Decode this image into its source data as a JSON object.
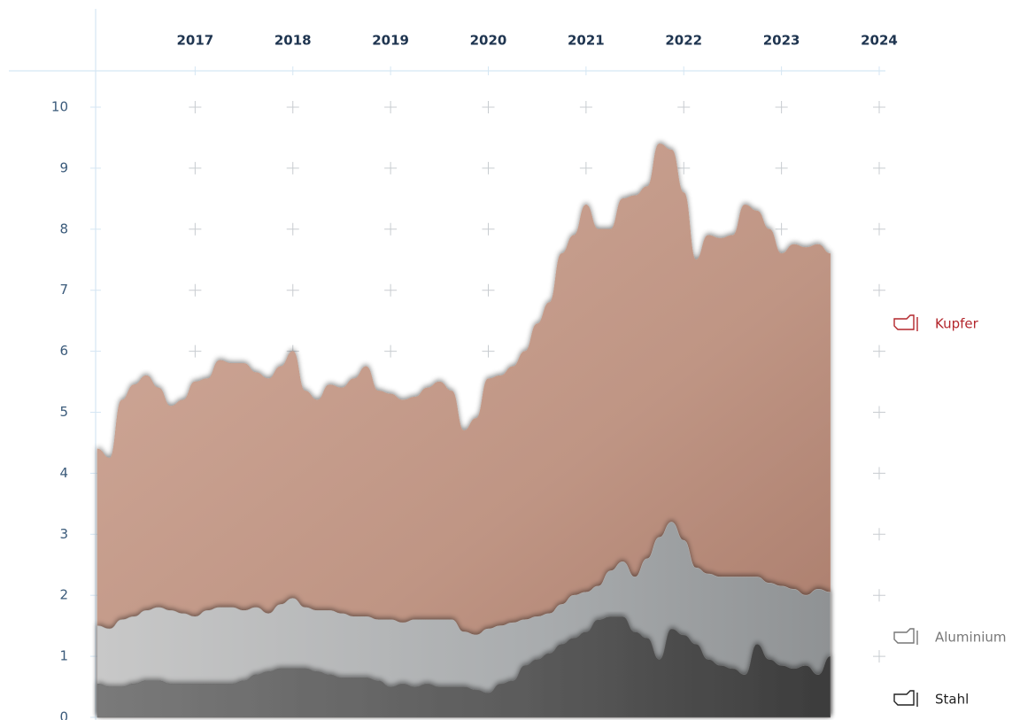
{
  "chart_data": {
    "type": "area",
    "x": [
      2016,
      2016.125,
      2016.25,
      2016.375,
      2016.5,
      2016.625,
      2016.75,
      2016.875,
      2017,
      2017.125,
      2017.25,
      2017.375,
      2017.5,
      2017.625,
      2017.75,
      2017.875,
      2018,
      2018.125,
      2018.25,
      2018.375,
      2018.5,
      2018.625,
      2018.75,
      2018.875,
      2019,
      2019.125,
      2019.25,
      2019.375,
      2019.5,
      2019.625,
      2019.75,
      2019.875,
      2020,
      2020.125,
      2020.25,
      2020.375,
      2020.5,
      2020.625,
      2020.75,
      2020.875,
      2021,
      2021.125,
      2021.25,
      2021.375,
      2021.5,
      2021.625,
      2021.75,
      2021.875,
      2022,
      2022.125,
      2022.25,
      2022.375,
      2022.5,
      2022.625,
      2022.75,
      2022.875,
      2023,
      2023.125,
      2023.25,
      2023.375,
      2023.5
    ],
    "series": [
      {
        "name": "Kupfer",
        "color": "#c49a88",
        "label_color": "#b3262c",
        "values": [
          4.4,
          4.25,
          5.2,
          5.45,
          5.6,
          5.4,
          5.1,
          5.2,
          5.5,
          5.55,
          5.85,
          5.8,
          5.8,
          5.65,
          5.55,
          5.75,
          6.0,
          5.35,
          5.2,
          5.45,
          5.4,
          5.55,
          5.75,
          5.35,
          5.3,
          5.2,
          5.25,
          5.4,
          5.5,
          5.35,
          4.7,
          4.9,
          5.55,
          5.6,
          5.75,
          6.0,
          6.45,
          6.8,
          7.6,
          7.9,
          8.4,
          8.0,
          8.0,
          8.5,
          8.55,
          8.7,
          9.4,
          9.3,
          8.6,
          7.5,
          7.9,
          7.85,
          7.9,
          8.4,
          8.3,
          8.0,
          7.6,
          7.75,
          7.7,
          7.75,
          7.6
        ]
      },
      {
        "name": "Aluminium",
        "color": "#b4b4b4",
        "label_color": "#777777",
        "values": [
          1.5,
          1.45,
          1.6,
          1.65,
          1.75,
          1.8,
          1.75,
          1.7,
          1.65,
          1.75,
          1.8,
          1.8,
          1.75,
          1.8,
          1.7,
          1.85,
          1.95,
          1.8,
          1.75,
          1.75,
          1.7,
          1.65,
          1.65,
          1.6,
          1.6,
          1.55,
          1.6,
          1.6,
          1.6,
          1.6,
          1.4,
          1.35,
          1.45,
          1.5,
          1.55,
          1.6,
          1.65,
          1.7,
          1.85,
          2.0,
          2.05,
          2.15,
          2.4,
          2.55,
          2.3,
          2.6,
          2.95,
          3.2,
          2.9,
          2.45,
          2.35,
          2.3,
          2.3,
          2.3,
          2.3,
          2.2,
          2.15,
          2.1,
          2.0,
          2.1,
          2.05
        ]
      },
      {
        "name": "Stahl",
        "color": "#6c6c6c",
        "label_color": "#222222",
        "values": [
          0.55,
          0.5,
          0.5,
          0.55,
          0.6,
          0.6,
          0.55,
          0.55,
          0.55,
          0.55,
          0.55,
          0.55,
          0.6,
          0.7,
          0.75,
          0.8,
          0.8,
          0.8,
          0.75,
          0.7,
          0.65,
          0.65,
          0.65,
          0.6,
          0.5,
          0.55,
          0.5,
          0.55,
          0.5,
          0.5,
          0.5,
          0.45,
          0.4,
          0.55,
          0.6,
          0.85,
          0.95,
          1.05,
          1.2,
          1.3,
          1.4,
          1.6,
          1.65,
          1.65,
          1.4,
          1.3,
          0.95,
          1.45,
          1.35,
          1.2,
          0.95,
          0.85,
          0.8,
          0.7,
          1.2,
          0.95,
          0.85,
          0.8,
          0.85,
          0.7,
          1.0
        ]
      }
    ],
    "xlim": [
      2016,
      2024
    ],
    "xticks": [
      2017,
      2018,
      2019,
      2020,
      2021,
      2022,
      2023,
      2024
    ],
    "ylim": [
      0,
      10
    ],
    "yticks": [
      0,
      1,
      2,
      3,
      4,
      5,
      6,
      7,
      8,
      9,
      10
    ],
    "grid": true
  }
}
